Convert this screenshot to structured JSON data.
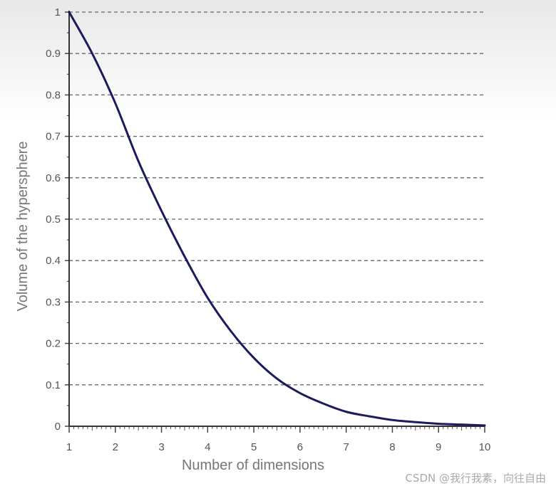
{
  "chart_data": {
    "type": "line",
    "title": "",
    "xlabel": "Number of dimensions",
    "ylabel": "Volume of the hypersphere",
    "xlim": [
      1,
      10
    ],
    "ylim": [
      0,
      1
    ],
    "grid": "horizontal dashed",
    "legend": "none",
    "x_ticks": [
      "1",
      "2",
      "3",
      "4",
      "5",
      "6",
      "7",
      "8",
      "9",
      "10"
    ],
    "y_ticks": [
      "0",
      "0.1",
      "0.2",
      "0.3",
      "0.4",
      "0.5",
      "0.6",
      "0.7",
      "0.8",
      "0.9",
      "1"
    ],
    "series": [
      {
        "color": "#1b1b5e",
        "x": [
          1,
          1.5,
          2,
          2.5,
          3,
          3.5,
          4,
          4.5,
          5,
          5.5,
          6,
          6.5,
          7,
          7.5,
          8,
          8.5,
          9,
          9.5,
          10
        ],
        "y": [
          1.0,
          0.9,
          0.78,
          0.64,
          0.52,
          0.41,
          0.31,
          0.23,
          0.165,
          0.115,
          0.08,
          0.055,
          0.035,
          0.024,
          0.015,
          0.01,
          0.006,
          0.004,
          0.002
        ]
      }
    ]
  },
  "watermark": "CSDN @我行我素，向往自由"
}
